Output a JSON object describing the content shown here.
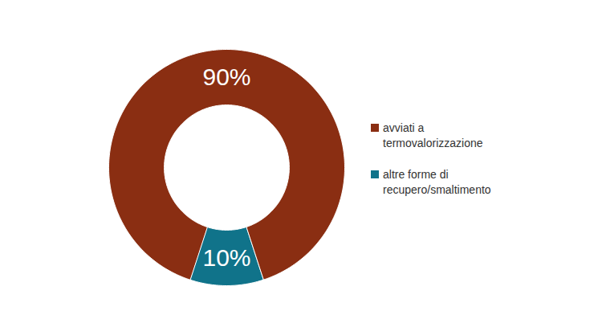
{
  "chart_data": {
    "type": "pie",
    "categories": [
      "avviati a termovalorizzazione",
      "altre forme di recupero/smaltimento"
    ],
    "values": [
      90,
      10
    ],
    "value_labels": [
      "90%",
      "10%"
    ],
    "colors": [
      "#8a2e12",
      "#10738a"
    ],
    "data_labels": true,
    "legend": "right"
  }
}
